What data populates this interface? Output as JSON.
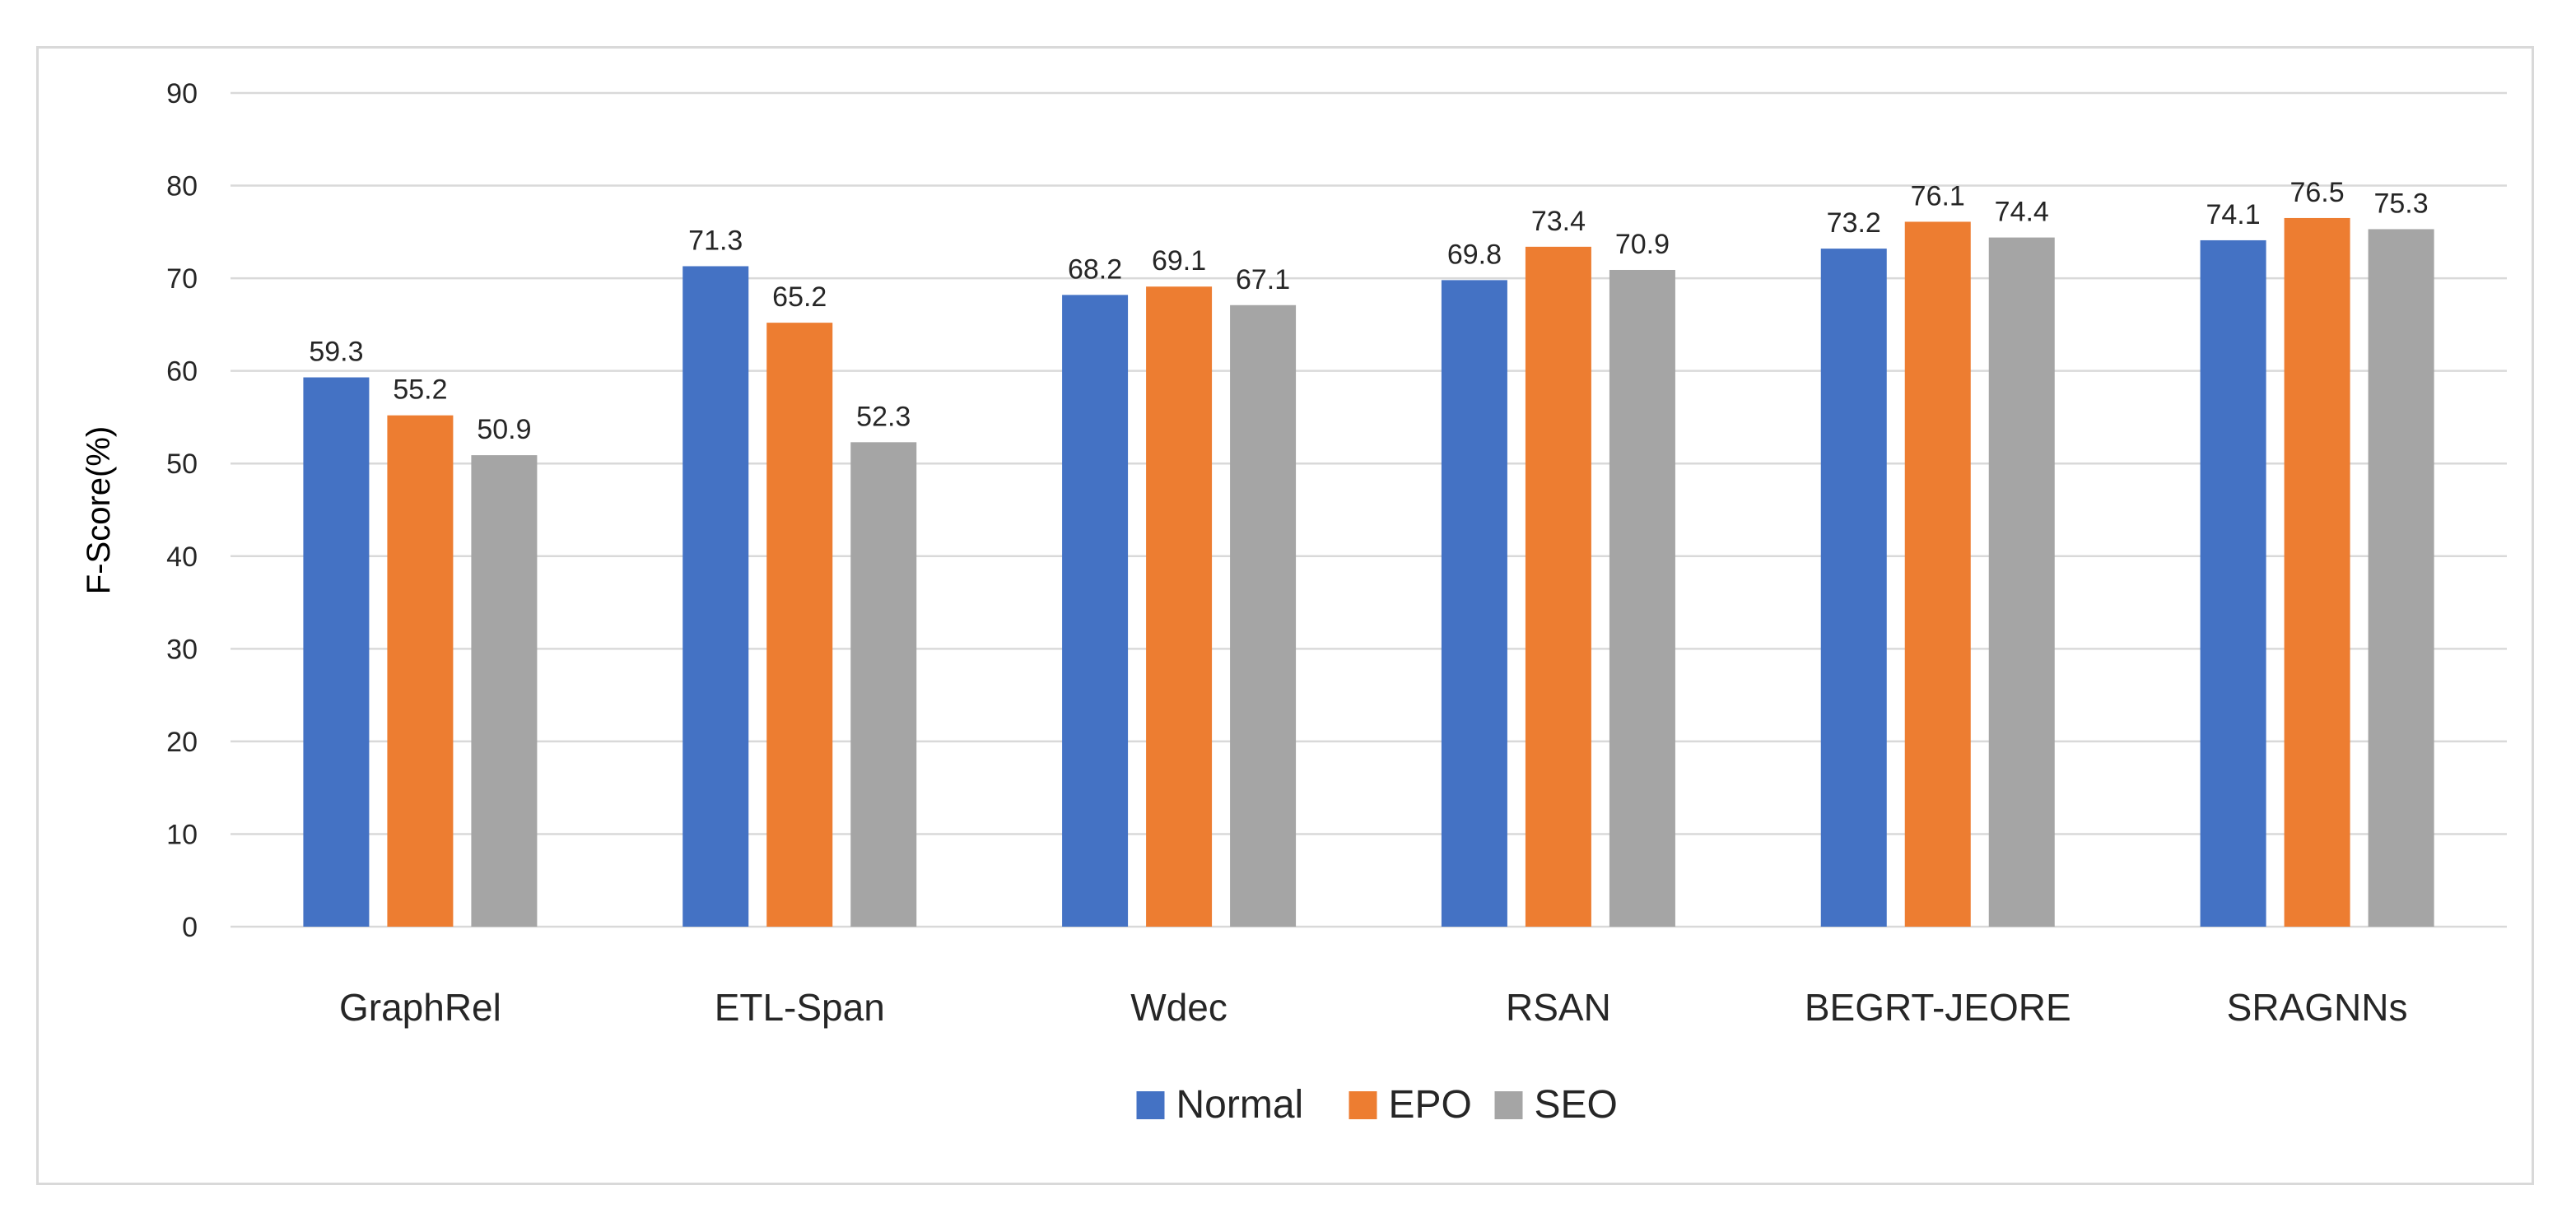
{
  "chart_data": {
    "type": "bar",
    "title": "",
    "xlabel": "",
    "ylabel": "F-Score(%)",
    "ylim": [
      0,
      90
    ],
    "ytick_step": 10,
    "grid": true,
    "legend_position": "bottom",
    "categories": [
      "GraphRel",
      "ETL-Span",
      "Wdec",
      "RSAN",
      "BEGRT-JEORE",
      "SRAGNNs"
    ],
    "series": [
      {
        "name": "Normal",
        "color": "#4472C4",
        "values": [
          59.3,
          71.3,
          68.2,
          69.8,
          73.2,
          74.1
        ]
      },
      {
        "name": "EPO",
        "color": "#ED7D31",
        "values": [
          55.2,
          65.2,
          69.1,
          73.4,
          76.1,
          76.5
        ]
      },
      {
        "name": "SEO",
        "color": "#A5A5A5",
        "values": [
          50.9,
          52.3,
          67.1,
          70.9,
          74.4,
          75.3
        ]
      }
    ]
  },
  "colors": {
    "gridline": "#D9D9D9",
    "text": "#262626",
    "frame": "#D9D9D9"
  }
}
